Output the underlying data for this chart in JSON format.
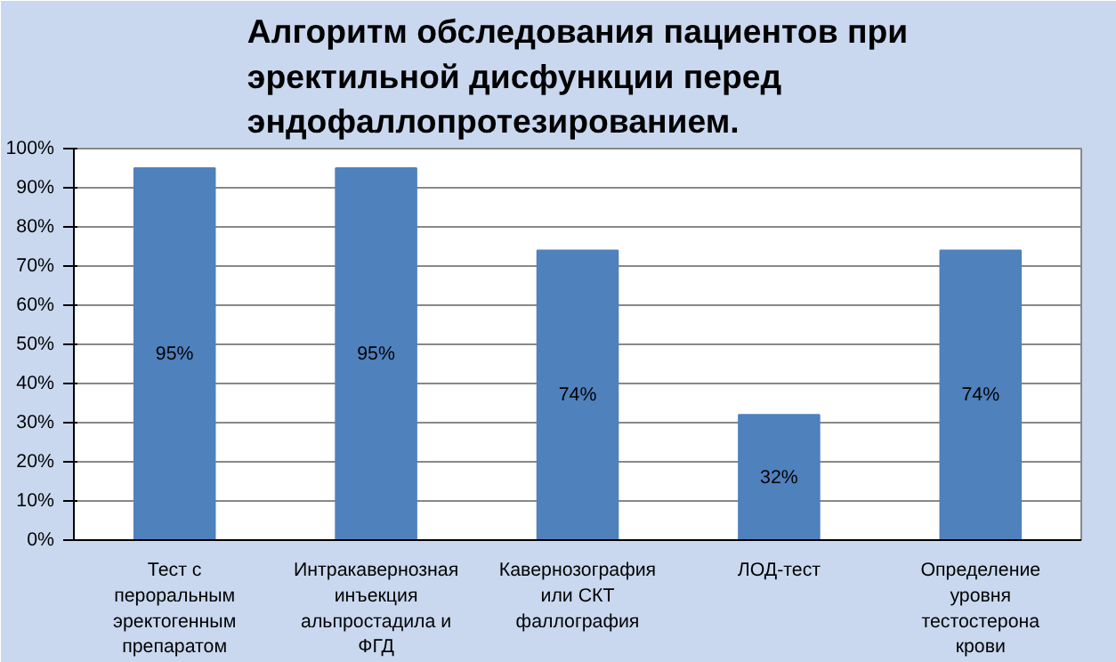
{
  "chart_data": {
    "type": "bar",
    "title": "Алгоритм обследования пациентов при эректильной дисфункции перед эндофаллопротезированием.",
    "categories": [
      "Тест с пероральным эректогенным препаратом",
      "Интракавернозная инъекция альпростадила и ФГД",
      "Кавернозография или СКТ фаллография",
      "ЛОД-тест",
      "Определение уровня тестостерона крови"
    ],
    "values": [
      95,
      95,
      74,
      32,
      74
    ],
    "color": "#4f81bd",
    "value_labels": [
      "95%",
      "95%",
      "74%",
      "32%",
      "74%"
    ],
    "ylim": [
      0,
      100
    ],
    "yticks": [
      {
        "value": 0,
        "label": "0%"
      },
      {
        "value": 10,
        "label": "10%"
      },
      {
        "value": 20,
        "label": "20%"
      },
      {
        "value": 30,
        "label": "30%"
      },
      {
        "value": 40,
        "label": "40%"
      },
      {
        "value": 50,
        "label": "50%"
      },
      {
        "value": 60,
        "label": "60%"
      },
      {
        "value": 70,
        "label": "70%"
      },
      {
        "value": 80,
        "label": "80%"
      },
      {
        "value": 90,
        "label": "90%"
      },
      {
        "value": 100,
        "label": "100%"
      }
    ],
    "grid": "y"
  }
}
